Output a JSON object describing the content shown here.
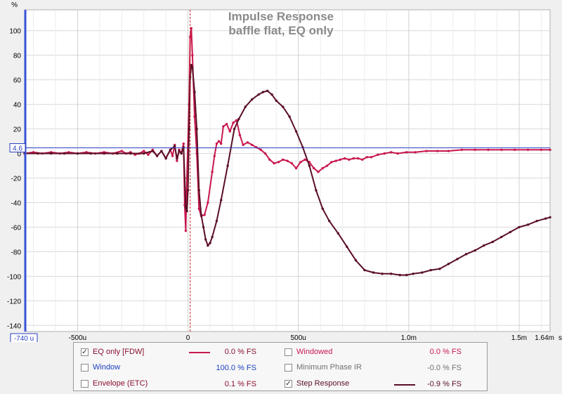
{
  "chart_data": {
    "type": "line",
    "title": "Impulse Response",
    "subtitle": "baffle flat, EQ only",
    "ylabel": "%",
    "xunit": "s",
    "xlim": [
      -740,
      1640
    ],
    "ylim": [
      -145,
      117
    ],
    "yticks": [
      100,
      80,
      60,
      40,
      20,
      0,
      -20,
      -40,
      -60,
      -80,
      -100,
      -120,
      -140
    ],
    "xticks": [
      {
        "v": -500,
        "label": "-500u"
      },
      {
        "v": 0,
        "label": "0"
      },
      {
        "v": 500,
        "label": "500u"
      },
      {
        "v": 1000,
        "label": "1.0m"
      },
      {
        "v": 1500,
        "label": "1.5m"
      },
      {
        "v": 1640,
        "label": "1.64m"
      }
    ],
    "x_start_label": "-740 u",
    "y_cursor_label": "4.6",
    "y_cursor_value": 4.6,
    "marker_x": 10,
    "grid": true,
    "series": [
      {
        "name": "EQ only [FDW]",
        "color": "#c8174d",
        "points": [
          [
            -740,
            0
          ],
          [
            -700,
            1
          ],
          [
            -660,
            0
          ],
          [
            -620,
            1
          ],
          [
            -580,
            0
          ],
          [
            -540,
            1
          ],
          [
            -500,
            0
          ],
          [
            -460,
            1
          ],
          [
            -420,
            0
          ],
          [
            -380,
            1
          ],
          [
            -340,
            0
          ],
          [
            -300,
            2
          ],
          [
            -280,
            0
          ],
          [
            -260,
            1
          ],
          [
            -240,
            -1
          ],
          [
            -220,
            0
          ],
          [
            -200,
            2
          ],
          [
            -180,
            -1
          ],
          [
            -160,
            3
          ],
          [
            -140,
            -2
          ],
          [
            -120,
            2
          ],
          [
            -100,
            -4
          ],
          [
            -80,
            3
          ],
          [
            -70,
            -2
          ],
          [
            -60,
            7
          ],
          [
            -50,
            -6
          ],
          [
            -40,
            3
          ],
          [
            -30,
            0
          ],
          [
            -20,
            8
          ],
          [
            -15,
            -42
          ],
          [
            -10,
            -63
          ],
          [
            -5,
            -20
          ],
          [
            5,
            40
          ],
          [
            10,
            95
          ],
          [
            15,
            102
          ],
          [
            20,
            80
          ],
          [
            30,
            30
          ],
          [
            40,
            0
          ],
          [
            50,
            -45
          ],
          [
            60,
            -51
          ],
          [
            75,
            -50
          ],
          [
            90,
            -40
          ],
          [
            110,
            -15
          ],
          [
            120,
            -2
          ],
          [
            130,
            8
          ],
          [
            140,
            10
          ],
          [
            150,
            8
          ],
          [
            160,
            22
          ],
          [
            175,
            24
          ],
          [
            190,
            18
          ],
          [
            205,
            25
          ],
          [
            220,
            27
          ],
          [
            235,
            15
          ],
          [
            250,
            7
          ],
          [
            270,
            9
          ],
          [
            290,
            7
          ],
          [
            310,
            5
          ],
          [
            330,
            3
          ],
          [
            350,
            0
          ],
          [
            370,
            -5
          ],
          [
            390,
            -8
          ],
          [
            410,
            -7
          ],
          [
            430,
            -5
          ],
          [
            450,
            -6
          ],
          [
            470,
            -8
          ],
          [
            490,
            -12
          ],
          [
            510,
            -7
          ],
          [
            530,
            -5
          ],
          [
            550,
            -7
          ],
          [
            570,
            -12
          ],
          [
            590,
            -15
          ],
          [
            610,
            -12
          ],
          [
            630,
            -10
          ],
          [
            650,
            -7
          ],
          [
            670,
            -6
          ],
          [
            690,
            -5
          ],
          [
            710,
            -4
          ],
          [
            730,
            -5
          ],
          [
            750,
            -4
          ],
          [
            770,
            -4
          ],
          [
            790,
            -5
          ],
          [
            810,
            -3
          ],
          [
            830,
            -3
          ],
          [
            860,
            -1
          ],
          [
            890,
            0
          ],
          [
            920,
            1
          ],
          [
            950,
            0
          ],
          [
            990,
            1
          ],
          [
            1030,
            1
          ],
          [
            1080,
            2
          ],
          [
            1130,
            2
          ],
          [
            1180,
            2
          ],
          [
            1240,
            3
          ],
          [
            1300,
            3
          ],
          [
            1360,
            3
          ],
          [
            1420,
            3
          ],
          [
            1480,
            3
          ],
          [
            1540,
            3
          ],
          [
            1600,
            3
          ],
          [
            1640,
            3
          ]
        ]
      },
      {
        "name": "Step Response",
        "color": "#5a0f25",
        "points": [
          [
            -740,
            0
          ],
          [
            -680,
            0
          ],
          [
            -620,
            0
          ],
          [
            -560,
            0
          ],
          [
            -500,
            0
          ],
          [
            -440,
            0
          ],
          [
            -380,
            0
          ],
          [
            -320,
            0
          ],
          [
            -260,
            0
          ],
          [
            -200,
            0
          ],
          [
            -160,
            2
          ],
          [
            -140,
            -2
          ],
          [
            -120,
            2
          ],
          [
            -100,
            -4
          ],
          [
            -80,
            3
          ],
          [
            -60,
            6
          ],
          [
            -50,
            -4
          ],
          [
            -40,
            2
          ],
          [
            -30,
            0
          ],
          [
            -20,
            5
          ],
          [
            -10,
            -44
          ],
          [
            -5,
            -47
          ],
          [
            0,
            -30
          ],
          [
            5,
            20
          ],
          [
            10,
            62
          ],
          [
            15,
            72
          ],
          [
            20,
            70
          ],
          [
            30,
            50
          ],
          [
            40,
            20
          ],
          [
            50,
            -30
          ],
          [
            60,
            -50
          ],
          [
            70,
            -60
          ],
          [
            80,
            -70
          ],
          [
            90,
            -75
          ],
          [
            100,
            -73
          ],
          [
            110,
            -68
          ],
          [
            130,
            -55
          ],
          [
            150,
            -38
          ],
          [
            180,
            -10
          ],
          [
            210,
            20
          ],
          [
            230,
            28
          ],
          [
            260,
            38
          ],
          [
            290,
            44
          ],
          [
            320,
            48
          ],
          [
            340,
            50
          ],
          [
            360,
            51
          ],
          [
            380,
            48
          ],
          [
            400,
            43
          ],
          [
            430,
            38
          ],
          [
            460,
            30
          ],
          [
            490,
            18
          ],
          [
            520,
            5
          ],
          [
            550,
            -10
          ],
          [
            580,
            -30
          ],
          [
            610,
            -45
          ],
          [
            640,
            -55
          ],
          [
            680,
            -65
          ],
          [
            720,
            -76
          ],
          [
            760,
            -87
          ],
          [
            800,
            -95
          ],
          [
            840,
            -97
          ],
          [
            880,
            -98
          ],
          [
            920,
            -98
          ],
          [
            960,
            -99
          ],
          [
            990,
            -99
          ],
          [
            1020,
            -98
          ],
          [
            1060,
            -97
          ],
          [
            1100,
            -95
          ],
          [
            1140,
            -94
          ],
          [
            1180,
            -90
          ],
          [
            1220,
            -86
          ],
          [
            1260,
            -82
          ],
          [
            1300,
            -79
          ],
          [
            1340,
            -75
          ],
          [
            1380,
            -72
          ],
          [
            1420,
            -68
          ],
          [
            1460,
            -64
          ],
          [
            1500,
            -60
          ],
          [
            1540,
            -58
          ],
          [
            1580,
            -55
          ],
          [
            1620,
            -53
          ],
          [
            1640,
            -52
          ]
        ]
      }
    ]
  },
  "legend": {
    "items": [
      {
        "id": "eq",
        "label": "EQ only [FDW]",
        "value": "0.0 % FS",
        "checked": true,
        "label_color": "#8b1030",
        "value_color": "#8b1030",
        "swatch_color": "#c8174d"
      },
      {
        "id": "windowed",
        "label": "Windowed",
        "value": "0.0 % FS",
        "checked": false,
        "label_color": "#c8174d",
        "value_color": "#c8174d"
      },
      {
        "id": "window",
        "label": "Window",
        "value": "100.0 % FS",
        "checked": false,
        "label_color": "#1a3fbf",
        "value_color": "#1a3fbf"
      },
      {
        "id": "minphase",
        "label": "Minimum Phase IR",
        "value": "-0.0 % FS",
        "checked": false,
        "label_color": "#707070",
        "value_color": "#707070"
      },
      {
        "id": "envelope",
        "label": "Envelope (ETC)",
        "value": "0.1 % FS",
        "checked": false,
        "label_color": "#8b1030",
        "value_color": "#8b1030"
      },
      {
        "id": "step",
        "label": "Step Response",
        "value": "-0.9 % FS",
        "checked": true,
        "label_color": "#5a0f25",
        "value_color": "#5a0f25",
        "swatch_color": "#5a0f25"
      }
    ]
  }
}
